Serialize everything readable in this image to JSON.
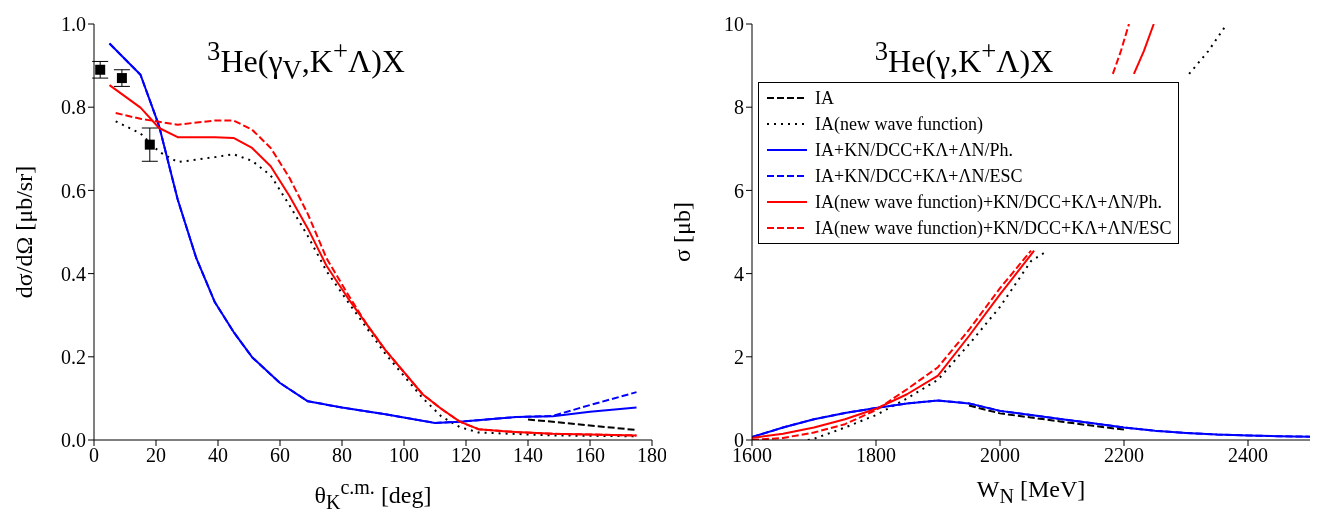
{
  "chart_data": [
    {
      "type": "line",
      "title": "$^{3}$He(γ$_{V}$,K$^{+}$Λ)X",
      "xlabel": "θ$_{K}$$^{c.m.}$ [deg]",
      "ylabel": "dσ/dΩ [μb/sr]",
      "xlim": [
        0,
        180
      ],
      "xticks": [
        0,
        20,
        40,
        60,
        80,
        100,
        120,
        140,
        160,
        180
      ],
      "ylim": [
        0,
        1
      ],
      "yticks": [
        {
          "value": 0,
          "label": "0.0"
        },
        {
          "value": 0.2,
          "label": "0.2"
        },
        {
          "value": 0.4,
          "label": "0.4"
        },
        {
          "value": 0.6,
          "label": "0.6"
        },
        {
          "value": 0.8,
          "label": "0.8"
        },
        {
          "value": 1,
          "label": "1.0"
        }
      ],
      "marker": "none",
      "series": [
        {
          "color": "#000000",
          "line_style": "dashed",
          "x": [
            140,
            148,
            160,
            175
          ],
          "values": [
            0.049,
            0.044,
            0.035,
            0.024
          ]
        },
        {
          "color": "#000000",
          "line_style": "dotted",
          "x": [
            7,
            15,
            21,
            27,
            39,
            45,
            51,
            57,
            63,
            69,
            75,
            82,
            88,
            94,
            100,
            106,
            112,
            118,
            124,
            148,
            175
          ],
          "values": [
            0.766,
            0.737,
            0.693,
            0.668,
            0.68,
            0.687,
            0.671,
            0.636,
            0.565,
            0.49,
            0.406,
            0.331,
            0.269,
            0.207,
            0.154,
            0.101,
            0.057,
            0.031,
            0.018,
            0.011,
            0.009
          ]
        },
        {
          "color": "#0000ff",
          "line_style": "solid",
          "x": [
            5,
            15,
            21,
            27,
            33,
            39,
            45,
            51,
            60,
            69,
            80,
            94,
            110,
            118,
            136,
            148,
            160,
            175
          ],
          "values": [
            0.953,
            0.878,
            0.755,
            0.578,
            0.437,
            0.331,
            0.26,
            0.199,
            0.137,
            0.093,
            0.078,
            0.062,
            0.041,
            0.044,
            0.055,
            0.057,
            0.068,
            0.078
          ]
        },
        {
          "color": "#0000ff",
          "line_style": "dashed",
          "x": [
            5,
            15,
            21,
            27,
            33,
            39,
            45,
            51,
            60,
            69,
            80,
            94,
            110,
            118,
            136,
            148,
            160,
            175
          ],
          "values": [
            0.953,
            0.878,
            0.755,
            0.578,
            0.437,
            0.331,
            0.26,
            0.199,
            0.137,
            0.093,
            0.078,
            0.062,
            0.041,
            0.044,
            0.055,
            0.058,
            0.084,
            0.115
          ]
        },
        {
          "color": "#ff0000",
          "line_style": "solid",
          "x": [
            5,
            15,
            21,
            27,
            39,
            45,
            51,
            57,
            63,
            69,
            75,
            82,
            88,
            94,
            100,
            106,
            112,
            118,
            124,
            136,
            148,
            175
          ],
          "values": [
            0.853,
            0.799,
            0.75,
            0.728,
            0.728,
            0.726,
            0.702,
            0.658,
            0.587,
            0.508,
            0.419,
            0.34,
            0.278,
            0.216,
            0.163,
            0.11,
            0.075,
            0.044,
            0.026,
            0.019,
            0.015,
            0.011
          ]
        },
        {
          "color": "#ff0000",
          "line_style": "dashed",
          "x": [
            7,
            15,
            27,
            39,
            45,
            51,
            57,
            63,
            69,
            75,
            82,
            88,
            94,
            100,
            106,
            112,
            118,
            124,
            136,
            148,
            175
          ],
          "values": [
            0.786,
            0.772,
            0.758,
            0.768,
            0.768,
            0.746,
            0.702,
            0.631,
            0.543,
            0.437,
            0.349,
            0.278,
            0.216,
            0.163,
            0.11,
            0.075,
            0.044,
            0.026,
            0.019,
            0.015,
            0.011
          ]
        },
        {
          "type": "scatter",
          "color": "#000000",
          "marker": "square",
          "x": [
            2,
            9,
            18
          ],
          "values": [
            0.89,
            0.87,
            0.71
          ],
          "errors": [
            0.02,
            0.02,
            0.04
          ]
        }
      ]
    },
    {
      "type": "line",
      "title": "$^{3}$He(γ,K$^{+}$Λ)X",
      "xlabel": "W$_{N}$ [MeV]",
      "ylabel": "σ [μb]",
      "xlim": [
        1600,
        2500
      ],
      "xticks": [
        1600,
        1800,
        2000,
        2200,
        2400
      ],
      "ylim": [
        0,
        10
      ],
      "yticks": [
        0,
        2,
        4,
        6,
        8,
        10
      ],
      "marker": "none",
      "legend": "top left",
      "series": [
        {
          "name": "IA",
          "color": "#000000",
          "line_style": "dashed",
          "x": [
            1950,
            2000,
            2050,
            2100,
            2150,
            2200
          ],
          "values": [
            0.83,
            0.64,
            0.54,
            0.44,
            0.34,
            0.25
          ]
        },
        {
          "name": "IA(new wave function)",
          "color": "#000000",
          "line_style": "dotted",
          "x": [
            1690,
            1700,
            1750,
            1800,
            1850,
            1900,
            1950,
            2000,
            2050,
            2077,
            2150,
            2305,
            2336,
            2366
          ],
          "values": [
            0,
            0.03,
            0.3,
            0.6,
            1.0,
            1.45,
            2.3,
            3.2,
            4.3,
            4.55,
            null,
            8.8,
            9.35,
            10
          ]
        },
        {
          "name": "IA+KN/DCC+KΛ+ΛN/Ph.",
          "color": "#0000ff",
          "line_style": "solid",
          "x": [
            1600,
            1650,
            1700,
            1750,
            1800,
            1850,
            1900,
            1950,
            2000,
            2050,
            2100,
            2150,
            2200,
            2250,
            2300,
            2350,
            2400,
            2450,
            2500
          ],
          "values": [
            0.07,
            0.3,
            0.5,
            0.65,
            0.77,
            0.88,
            0.95,
            0.88,
            0.7,
            0.6,
            0.5,
            0.4,
            0.3,
            0.22,
            0.17,
            0.13,
            0.11,
            0.09,
            0.08
          ]
        },
        {
          "name": "IA+KN/DCC+KΛ+ΛN/ESC",
          "color": "#0000ff",
          "line_style": "dashed",
          "x": [
            1600,
            1650,
            1700,
            1750,
            1800,
            1850,
            1900,
            1950,
            2000,
            2050,
            2100,
            2150,
            2200,
            2250,
            2300,
            2350,
            2400,
            2450,
            2500
          ],
          "values": [
            0.07,
            0.3,
            0.5,
            0.65,
            0.77,
            0.88,
            0.95,
            0.88,
            0.7,
            0.6,
            0.5,
            0.4,
            0.3,
            0.22,
            0.17,
            0.13,
            0.11,
            0.09,
            0.08
          ]
        },
        {
          "name": "IA(new wave function)+KN/DCC+KΛ+ΛN/Ph.",
          "color": "#ff0000",
          "line_style": "solid",
          "x": [
            1600,
            1650,
            1700,
            1750,
            1800,
            1850,
            1900,
            1950,
            2000,
            2055,
            2150,
            2216,
            2232,
            2248
          ],
          "values": [
            0.05,
            0.15,
            0.3,
            0.5,
            0.75,
            1.1,
            1.55,
            2.5,
            3.5,
            4.55,
            null,
            8.8,
            9.35,
            10
          ]
        },
        {
          "name": "IA(new wave function)+KN/DCC+KΛ+ΛN/ESC",
          "color": "#ff0000",
          "line_style": "dashed",
          "x": [
            1600,
            1650,
            1700,
            1750,
            1800,
            1850,
            1900,
            1950,
            2000,
            2050,
            2130,
            2182,
            2195,
            2208
          ],
          "values": [
            0,
            0.05,
            0.18,
            0.38,
            0.72,
            1.22,
            1.75,
            2.65,
            3.65,
            4.55,
            null,
            8.8,
            9.35,
            10
          ]
        }
      ]
    }
  ]
}
